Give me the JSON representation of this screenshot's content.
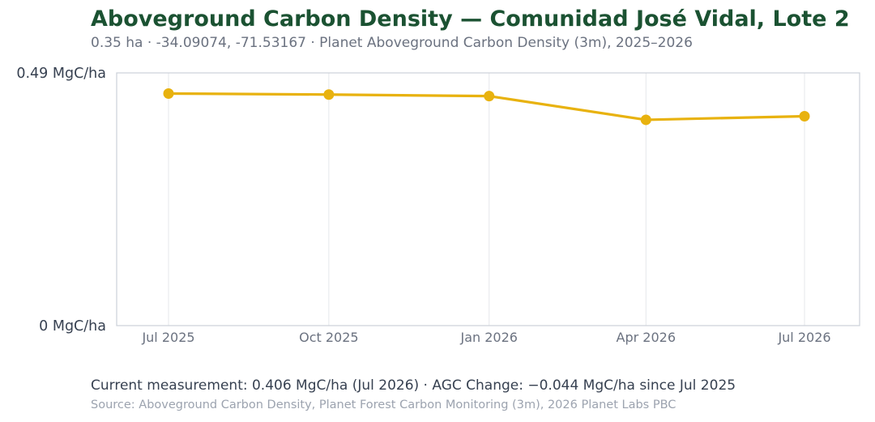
{
  "header": {
    "title": "Aboveground Carbon Density — Comunidad José Vidal, Lote 2",
    "subtitle": "0.35 ha  ·  -34.09074, -71.53167  ·  Planet Aboveground Carbon Density (3m), 2025–2026"
  },
  "chart_data": {
    "type": "line",
    "x": [
      "Jul 2025",
      "Oct 2025",
      "Jan 2026",
      "Apr 2026",
      "Jul 2026"
    ],
    "x_dates": [
      "2025-07-01",
      "2025-10-01",
      "2026-01-01",
      "2026-04-01",
      "2026-07-01"
    ],
    "series": [
      {
        "values": [
          0.45,
          0.448,
          0.445,
          0.399,
          0.406
        ]
      }
    ],
    "ylim": [
      0,
      0.49
    ],
    "y_tick_labels": [
      "0 MgC/ha",
      "0.49 MgC/ha"
    ],
    "grid": "vertical",
    "legend": "none",
    "colors": {
      "line": "#e8b20f",
      "grid": "#e5e7eb",
      "axes": "#cbd0d8"
    }
  },
  "footer": {
    "summary": "Current measurement: 0.406 MgC/ha (Jul 2026)  ·  AGC Change: −0.044 MgC/ha since Jul 2025",
    "source": "Source: Aboveground Carbon Density, Planet Forest Carbon Monitoring (3m), 2026 Planet Labs PBC"
  }
}
